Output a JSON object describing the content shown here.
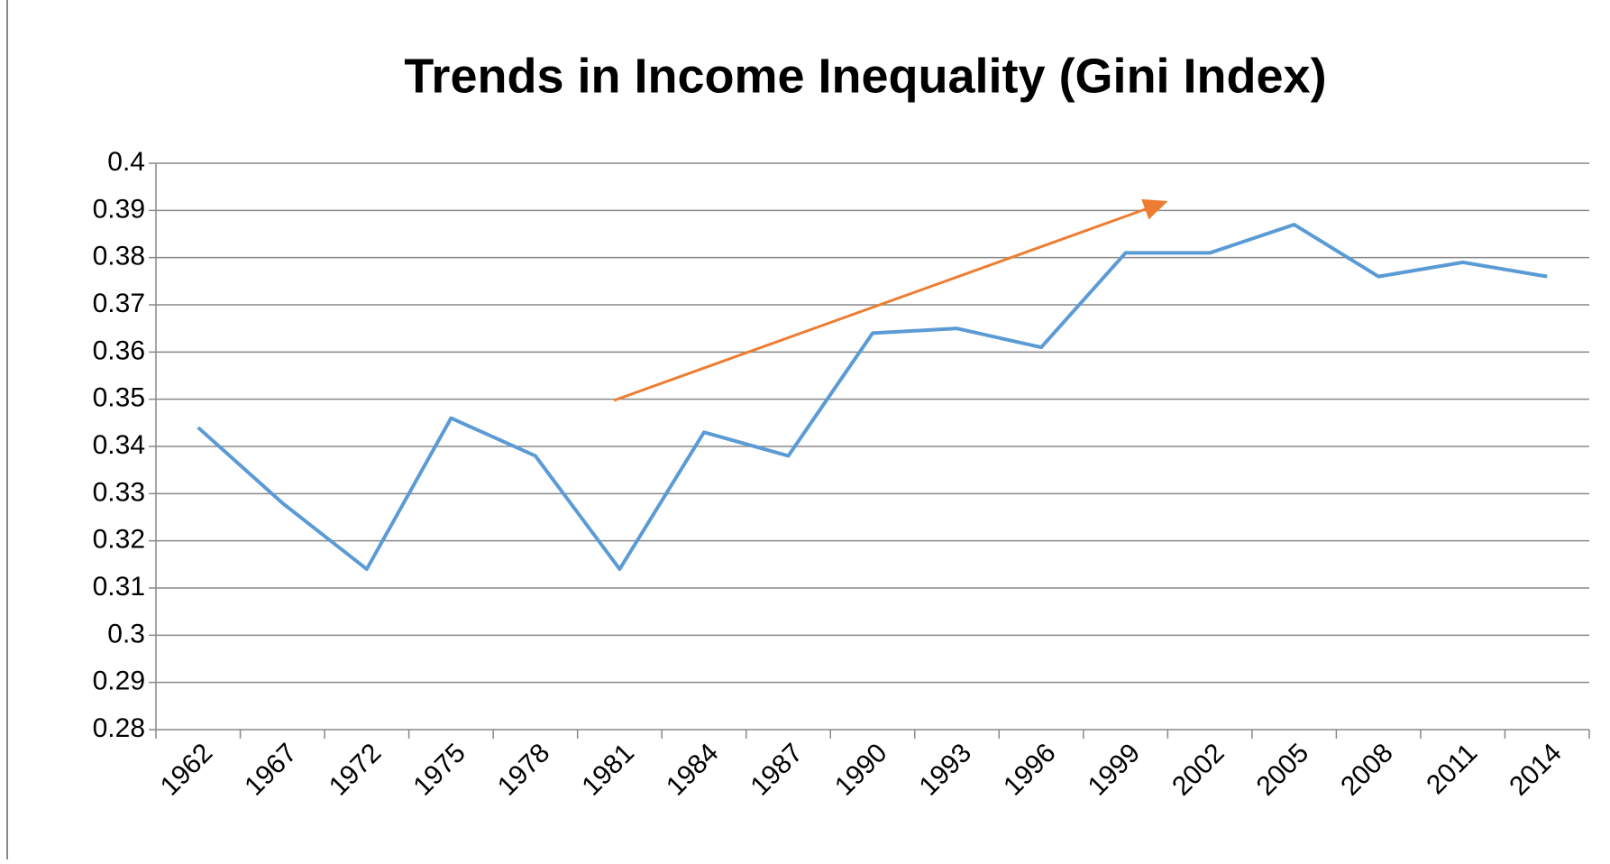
{
  "chart_data": {
    "type": "line",
    "title": "Trends in Income Inequality (Gini Index)",
    "categories": [
      "1962",
      "1967",
      "1972",
      "1975",
      "1978",
      "1981",
      "1984",
      "1987",
      "1990",
      "1993",
      "1996",
      "1999",
      "2002",
      "2005",
      "2008",
      "2011",
      "2014"
    ],
    "series": [
      {
        "name": "Gini Index",
        "color": "#5b9bd5",
        "values": [
          0.344,
          0.328,
          0.314,
          0.346,
          0.338,
          0.314,
          0.343,
          0.338,
          0.364,
          0.365,
          0.361,
          0.381,
          0.381,
          0.387,
          0.376,
          0.379,
          0.376
        ]
      }
    ],
    "ylim": [
      0.28,
      0.4
    ],
    "yticks": [
      0.28,
      0.29,
      0.3,
      0.31,
      0.32,
      0.33,
      0.34,
      0.35,
      0.36,
      0.37,
      0.38,
      0.39,
      0.4
    ],
    "grid": true
  }
}
